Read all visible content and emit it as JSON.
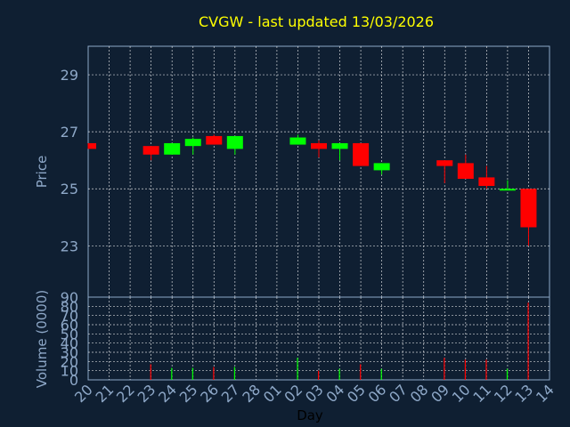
{
  "colors": {
    "background": "#0f1f32",
    "title": "#ffff00",
    "axis_text": "#8ea8c8",
    "frame": "#8ea8c8",
    "grid": "#ffffff",
    "up": "#00ff00",
    "down": "#ff0000",
    "xlabel": "#000000"
  },
  "chart_data": [
    {
      "type": "candlestick",
      "title": "CVGW - last updated 13/03/2026",
      "ylabel": "Price",
      "ylim": [
        21.2,
        30
      ],
      "yticks": [
        23,
        25,
        27,
        29
      ],
      "grid": true,
      "days": [
        "20",
        "21",
        "22",
        "23",
        "24",
        "25",
        "26",
        "27",
        "28",
        "01",
        "02",
        "03",
        "04",
        "05",
        "06",
        "07",
        "08",
        "09",
        "10",
        "11",
        "12",
        "13",
        "14"
      ],
      "candles": [
        {
          "day": "20",
          "open": 26.6,
          "close": 26.4,
          "high": 26.6,
          "low": 26.4
        },
        {
          "day": "23",
          "open": 26.5,
          "close": 26.2,
          "high": 26.5,
          "low": 26.0
        },
        {
          "day": "24",
          "open": 26.2,
          "close": 26.6,
          "high": 26.6,
          "low": 26.2
        },
        {
          "day": "25",
          "open": 26.5,
          "close": 26.75,
          "high": 26.8,
          "low": 26.2
        },
        {
          "day": "26",
          "open": 26.85,
          "close": 26.55,
          "high": 26.9,
          "low": 26.55
        },
        {
          "day": "27",
          "open": 26.4,
          "close": 26.85,
          "high": 26.85,
          "low": 26.2
        },
        {
          "day": "02",
          "open": 26.55,
          "close": 26.8,
          "high": 26.9,
          "low": 26.55
        },
        {
          "day": "03",
          "open": 26.6,
          "close": 26.4,
          "high": 26.7,
          "low": 26.1
        },
        {
          "day": "04",
          "open": 26.4,
          "close": 26.6,
          "high": 26.6,
          "low": 26.0
        },
        {
          "day": "05",
          "open": 26.6,
          "close": 25.8,
          "high": 26.6,
          "low": 25.8
        },
        {
          "day": "06",
          "open": 25.65,
          "close": 25.9,
          "high": 25.9,
          "low": 25.5
        },
        {
          "day": "09",
          "open": 26.0,
          "close": 25.8,
          "high": 26.0,
          "low": 25.2
        },
        {
          "day": "10",
          "open": 25.9,
          "close": 25.35,
          "high": 26.2,
          "low": 25.35
        },
        {
          "day": "11",
          "open": 25.4,
          "close": 25.1,
          "high": 25.8,
          "low": 25.0
        },
        {
          "day": "12",
          "open": 24.95,
          "close": 25.0,
          "high": 25.3,
          "low": 24.95
        },
        {
          "day": "13",
          "open": 25.0,
          "close": 23.65,
          "high": 25.0,
          "low": 23.0
        }
      ]
    },
    {
      "type": "bar",
      "ylabel": "Volume (0000)",
      "xlabel": "Day",
      "ylim": [
        0,
        90
      ],
      "yticks": [
        0,
        10,
        20,
        30,
        40,
        50,
        60,
        70,
        80,
        90
      ],
      "values": [
        {
          "day": "23",
          "volume": 17,
          "dir": "down"
        },
        {
          "day": "24",
          "volume": 13,
          "dir": "up"
        },
        {
          "day": "25",
          "volume": 13,
          "dir": "up"
        },
        {
          "day": "26",
          "volume": 14,
          "dir": "down"
        },
        {
          "day": "27",
          "volume": 14,
          "dir": "up"
        },
        {
          "day": "02",
          "volume": 24,
          "dir": "up"
        },
        {
          "day": "03",
          "volume": 10,
          "dir": "down"
        },
        {
          "day": "04",
          "volume": 12,
          "dir": "up"
        },
        {
          "day": "05",
          "volume": 17,
          "dir": "down"
        },
        {
          "day": "06",
          "volume": 12,
          "dir": "up"
        },
        {
          "day": "09",
          "volume": 24,
          "dir": "down"
        },
        {
          "day": "10",
          "volume": 22,
          "dir": "down"
        },
        {
          "day": "11",
          "volume": 22,
          "dir": "down"
        },
        {
          "day": "12",
          "volume": 12,
          "dir": "up"
        },
        {
          "day": "13",
          "volume": 84,
          "dir": "down"
        }
      ]
    }
  ]
}
